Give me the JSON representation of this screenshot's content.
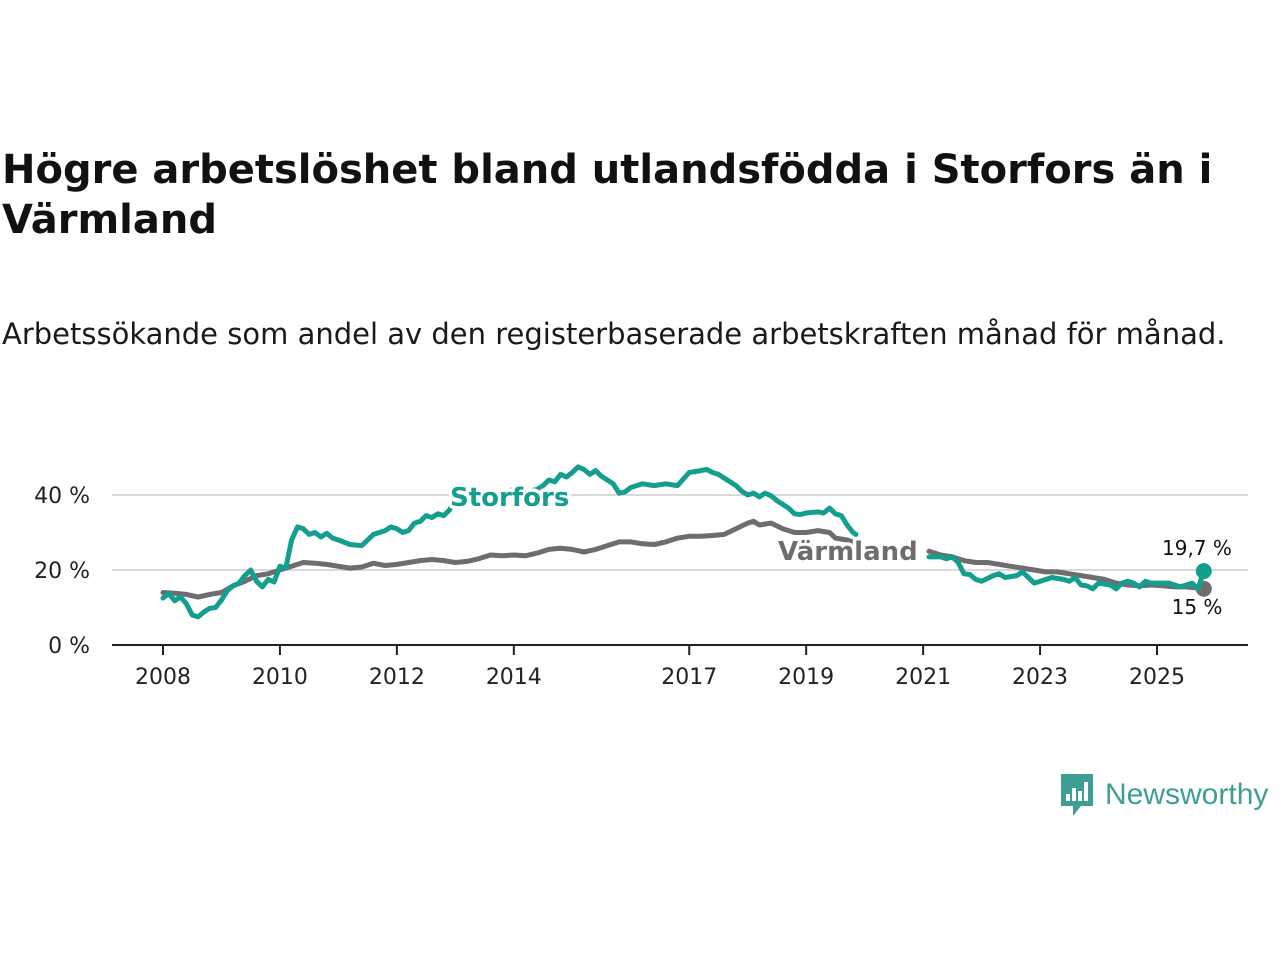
{
  "chart_data": {
    "type": "line",
    "title": "Högre arbetslöshet bland utlandsfödda i Storfors än i Värmland",
    "subtitle": "Arbetssökande som andel av den registerbaserade arbetskraften månad för månad.",
    "y_ticks": [
      "40 %",
      "20 %",
      "0 %"
    ],
    "y_tick_values": [
      40,
      20,
      0
    ],
    "x_ticks": [
      "2008",
      "2010",
      "2012",
      "2014",
      "2017",
      "2019",
      "2021",
      "2023",
      "2025"
    ],
    "x_tick_values": [
      2008.0,
      2010.0,
      2012.0,
      2014.0,
      2017.0,
      2019.0,
      2021.0,
      2023.0,
      2025.0
    ],
    "ylim": [
      0,
      50
    ],
    "xlim": [
      2007.2,
      2026.4
    ],
    "colors": {
      "Storfors": "#139e8e",
      "Värmland": "#6f6c70",
      "grid": "#d9d9d9",
      "axis": "#222222"
    },
    "series": [
      {
        "name": "Storfors",
        "label": "Storfors",
        "end_label": "19,7 %",
        "end_value": 19.7,
        "points": [
          [
            2008.0,
            12.5
          ],
          [
            2008.1,
            13.8
          ],
          [
            2008.2,
            11.8
          ],
          [
            2008.3,
            12.8
          ],
          [
            2008.4,
            11.0
          ],
          [
            2008.5,
            8.0
          ],
          [
            2008.6,
            7.5
          ],
          [
            2008.7,
            8.8
          ],
          [
            2008.8,
            9.8
          ],
          [
            2008.9,
            10.0
          ],
          [
            2009.0,
            12.0
          ],
          [
            2009.1,
            14.5
          ],
          [
            2009.2,
            15.8
          ],
          [
            2009.3,
            16.5
          ],
          [
            2009.4,
            18.5
          ],
          [
            2009.5,
            20.0
          ],
          [
            2009.6,
            17.0
          ],
          [
            2009.7,
            15.5
          ],
          [
            2009.8,
            17.5
          ],
          [
            2009.9,
            16.8
          ],
          [
            2010.0,
            21.0
          ],
          [
            2010.1,
            20.5
          ],
          [
            2010.2,
            28.0
          ],
          [
            2010.3,
            31.5
          ],
          [
            2010.4,
            31.0
          ],
          [
            2010.5,
            29.5
          ],
          [
            2010.6,
            30.0
          ],
          [
            2010.7,
            28.8
          ],
          [
            2010.8,
            29.8
          ],
          [
            2010.9,
            28.5
          ],
          [
            2011.0,
            28.0
          ],
          [
            2011.2,
            26.8
          ],
          [
            2011.4,
            26.5
          ],
          [
            2011.5,
            28.0
          ],
          [
            2011.6,
            29.5
          ],
          [
            2011.8,
            30.5
          ],
          [
            2011.9,
            31.5
          ],
          [
            2012.0,
            31.0
          ],
          [
            2012.1,
            30.0
          ],
          [
            2012.2,
            30.5
          ],
          [
            2012.3,
            32.5
          ],
          [
            2012.4,
            33.0
          ],
          [
            2012.5,
            34.5
          ],
          [
            2012.6,
            34.0
          ],
          [
            2012.7,
            35.0
          ],
          [
            2012.8,
            34.5
          ],
          [
            2012.9,
            36.0
          ],
          [
            2013.0,
            39.5
          ],
          [
            2013.2,
            39.8
          ],
          [
            2013.4,
            39.5
          ],
          [
            2013.6,
            39.2
          ],
          [
            2013.8,
            40.5
          ],
          [
            2014.0,
            41.5
          ],
          [
            2014.2,
            40.8
          ],
          [
            2014.4,
            41.5
          ],
          [
            2014.5,
            42.5
          ],
          [
            2014.6,
            44.0
          ],
          [
            2014.7,
            43.5
          ],
          [
            2014.8,
            45.5
          ],
          [
            2014.9,
            44.8
          ],
          [
            2015.0,
            46.0
          ],
          [
            2015.1,
            47.5
          ],
          [
            2015.2,
            46.8
          ],
          [
            2015.3,
            45.5
          ],
          [
            2015.4,
            46.5
          ],
          [
            2015.5,
            45.0
          ],
          [
            2015.6,
            44.0
          ],
          [
            2015.7,
            43.0
          ],
          [
            2015.8,
            40.5
          ],
          [
            2015.9,
            40.8
          ],
          [
            2016.0,
            42.0
          ],
          [
            2016.2,
            43.0
          ],
          [
            2016.4,
            42.5
          ],
          [
            2016.6,
            43.0
          ],
          [
            2016.8,
            42.5
          ],
          [
            2017.0,
            46.0
          ],
          [
            2017.2,
            46.5
          ],
          [
            2017.3,
            46.8
          ],
          [
            2017.4,
            46.0
          ],
          [
            2017.5,
            45.5
          ],
          [
            2017.6,
            44.5
          ],
          [
            2017.7,
            43.5
          ],
          [
            2017.8,
            42.5
          ],
          [
            2017.9,
            41.0
          ],
          [
            2018.0,
            40.0
          ],
          [
            2018.1,
            40.5
          ],
          [
            2018.2,
            39.5
          ],
          [
            2018.3,
            40.5
          ],
          [
            2018.4,
            39.8
          ],
          [
            2018.5,
            38.5
          ],
          [
            2018.6,
            37.5
          ],
          [
            2018.7,
            36.5
          ],
          [
            2018.8,
            35.0
          ],
          [
            2018.9,
            34.8
          ],
          [
            2019.0,
            35.2
          ],
          [
            2019.2,
            35.5
          ],
          [
            2019.3,
            35.2
          ],
          [
            2019.4,
            36.5
          ],
          [
            2019.5,
            35.0
          ],
          [
            2019.6,
            34.5
          ],
          [
            2019.7,
            32.0
          ],
          [
            2019.8,
            30.0
          ],
          [
            2019.85,
            29.5
          ]
        ],
        "points_2": [
          [
            2021.1,
            23.5
          ],
          [
            2021.3,
            23.5
          ],
          [
            2021.4,
            23.0
          ],
          [
            2021.5,
            23.5
          ],
          [
            2021.6,
            22.0
          ],
          [
            2021.7,
            19.0
          ],
          [
            2021.8,
            18.8
          ],
          [
            2021.9,
            17.5
          ],
          [
            2022.0,
            17.0
          ],
          [
            2022.2,
            18.5
          ],
          [
            2022.3,
            19.0
          ],
          [
            2022.4,
            18.0
          ],
          [
            2022.6,
            18.5
          ],
          [
            2022.7,
            19.5
          ],
          [
            2022.8,
            18.0
          ],
          [
            2022.9,
            16.5
          ],
          [
            2023.0,
            17.0
          ],
          [
            2023.2,
            18.0
          ],
          [
            2023.4,
            17.5
          ],
          [
            2023.5,
            17.0
          ],
          [
            2023.6,
            18.0
          ],
          [
            2023.7,
            16.0
          ],
          [
            2023.8,
            15.8
          ],
          [
            2023.9,
            15.0
          ],
          [
            2024.0,
            16.5
          ],
          [
            2024.2,
            16.0
          ],
          [
            2024.3,
            15.0
          ],
          [
            2024.4,
            16.5
          ],
          [
            2024.5,
            17.0
          ],
          [
            2024.6,
            16.5
          ],
          [
            2024.7,
            15.5
          ],
          [
            2024.8,
            17.0
          ],
          [
            2024.9,
            16.5
          ],
          [
            2025.0,
            16.5
          ],
          [
            2025.2,
            16.5
          ],
          [
            2025.3,
            16.0
          ],
          [
            2025.4,
            15.5
          ],
          [
            2025.5,
            16.0
          ],
          [
            2025.6,
            16.5
          ],
          [
            2025.7,
            15.0
          ],
          [
            2025.8,
            19.7
          ]
        ]
      },
      {
        "name": "Värmland",
        "label": "Värmland",
        "end_label": "15 %",
        "end_value": 15.0,
        "points": [
          [
            2008.0,
            14.0
          ],
          [
            2008.2,
            13.8
          ],
          [
            2008.4,
            13.5
          ],
          [
            2008.6,
            12.8
          ],
          [
            2008.8,
            13.5
          ],
          [
            2009.0,
            14.0
          ],
          [
            2009.2,
            15.8
          ],
          [
            2009.4,
            17.0
          ],
          [
            2009.6,
            18.5
          ],
          [
            2009.8,
            19.0
          ],
          [
            2010.0,
            20.0
          ],
          [
            2010.2,
            21.0
          ],
          [
            2010.4,
            22.0
          ],
          [
            2010.6,
            21.8
          ],
          [
            2010.8,
            21.5
          ],
          [
            2011.0,
            21.0
          ],
          [
            2011.2,
            20.5
          ],
          [
            2011.4,
            20.8
          ],
          [
            2011.6,
            21.8
          ],
          [
            2011.8,
            21.2
          ],
          [
            2012.0,
            21.5
          ],
          [
            2012.2,
            22.0
          ],
          [
            2012.4,
            22.5
          ],
          [
            2012.6,
            22.8
          ],
          [
            2012.8,
            22.5
          ],
          [
            2013.0,
            22.0
          ],
          [
            2013.2,
            22.3
          ],
          [
            2013.4,
            23.0
          ],
          [
            2013.6,
            24.0
          ],
          [
            2013.8,
            23.8
          ],
          [
            2014.0,
            24.0
          ],
          [
            2014.2,
            23.8
          ],
          [
            2014.4,
            24.5
          ],
          [
            2014.6,
            25.5
          ],
          [
            2014.8,
            25.8
          ],
          [
            2015.0,
            25.5
          ],
          [
            2015.2,
            24.8
          ],
          [
            2015.4,
            25.5
          ],
          [
            2015.6,
            26.5
          ],
          [
            2015.8,
            27.5
          ],
          [
            2016.0,
            27.5
          ],
          [
            2016.2,
            27.0
          ],
          [
            2016.4,
            26.8
          ],
          [
            2016.6,
            27.5
          ],
          [
            2016.8,
            28.5
          ],
          [
            2017.0,
            29.0
          ],
          [
            2017.2,
            29.0
          ],
          [
            2017.4,
            29.2
          ],
          [
            2017.6,
            29.5
          ],
          [
            2017.8,
            31.0
          ],
          [
            2018.0,
            32.5
          ],
          [
            2018.1,
            33.0
          ],
          [
            2018.2,
            32.0
          ],
          [
            2018.4,
            32.5
          ],
          [
            2018.6,
            31.0
          ],
          [
            2018.8,
            30.0
          ],
          [
            2019.0,
            30.0
          ],
          [
            2019.2,
            30.5
          ],
          [
            2019.4,
            30.0
          ],
          [
            2019.5,
            28.5
          ],
          [
            2019.7,
            28.0
          ],
          [
            2019.9,
            27.0
          ],
          [
            2020.05,
            26.0
          ]
        ],
        "points_2": [
          [
            2021.1,
            25.0
          ],
          [
            2021.3,
            24.0
          ],
          [
            2021.5,
            23.5
          ],
          [
            2021.7,
            22.5
          ],
          [
            2021.9,
            22.0
          ],
          [
            2022.1,
            22.0
          ],
          [
            2022.3,
            21.5
          ],
          [
            2022.5,
            21.0
          ],
          [
            2022.7,
            20.5
          ],
          [
            2022.9,
            20.0
          ],
          [
            2023.1,
            19.5
          ],
          [
            2023.3,
            19.5
          ],
          [
            2023.5,
            19.0
          ],
          [
            2023.7,
            18.5
          ],
          [
            2023.9,
            18.0
          ],
          [
            2024.1,
            17.5
          ],
          [
            2024.3,
            16.5
          ],
          [
            2024.5,
            16.0
          ],
          [
            2024.7,
            15.8
          ],
          [
            2024.9,
            16.0
          ],
          [
            2025.1,
            15.8
          ],
          [
            2025.3,
            15.5
          ],
          [
            2025.5,
            15.5
          ],
          [
            2025.7,
            15.2
          ],
          [
            2025.8,
            15.0
          ]
        ]
      }
    ]
  },
  "logo": {
    "text": "Newsworthy"
  }
}
